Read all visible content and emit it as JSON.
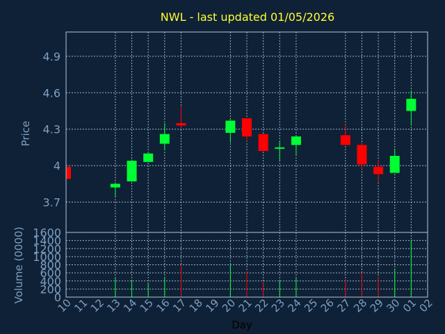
{
  "chart_data": {
    "type": "candlestick",
    "title": "NWL - last updated 01/05/2026",
    "price_axis": {
      "label": "Price",
      "ylim": [
        3.45,
        5.1
      ],
      "ticks": [
        3.7,
        4,
        4.3,
        4.6,
        4.9
      ],
      "tick_labels": [
        "3.7",
        "4",
        "4.3",
        "4.6",
        "4.9"
      ]
    },
    "volume_axis": {
      "label": "Volume (0000)",
      "ylim": [
        0,
        1600
      ],
      "ticks": [
        0,
        200,
        400,
        600,
        800,
        1000,
        1200,
        1400,
        1600
      ],
      "tick_labels": [
        "0",
        "200",
        "400",
        "600",
        "800",
        "1000",
        "1200",
        "1400",
        "1600"
      ]
    },
    "x_axis": {
      "label": "Day",
      "tick_labels": [
        "10",
        "11",
        "12",
        "13",
        "14",
        "15",
        "16",
        "17",
        "18",
        "19",
        "20",
        "21",
        "22",
        "23",
        "24",
        "25",
        "26",
        "27",
        "28",
        "29",
        "30",
        "01",
        "02"
      ],
      "grid_days": [
        "13",
        "14",
        "15",
        "16",
        "17",
        "20",
        "21",
        "22",
        "23",
        "24",
        "27",
        "28",
        "29",
        "30",
        "01"
      ]
    },
    "colors": {
      "up": "#00ff33",
      "down": "#ff0000"
    },
    "candles": [
      {
        "day": "10",
        "open": 3.99,
        "high": 3.99,
        "low": 3.89,
        "close": 3.89,
        "volume": 0
      },
      {
        "day": "13",
        "open": 3.82,
        "high": 3.86,
        "low": 3.74,
        "close": 3.85,
        "volume": 480
      },
      {
        "day": "14",
        "open": 3.87,
        "high": 4.05,
        "low": 3.87,
        "close": 4.04,
        "volume": 420
      },
      {
        "day": "15",
        "open": 4.03,
        "high": 4.1,
        "low": 4.03,
        "close": 4.1,
        "volume": 350
      },
      {
        "day": "16",
        "open": 4.18,
        "high": 4.35,
        "low": 4.13,
        "close": 4.26,
        "volume": 500
      },
      {
        "day": "17",
        "open": 4.35,
        "high": 4.49,
        "low": 4.31,
        "close": 4.33,
        "volume": 800
      },
      {
        "day": "20",
        "open": 4.27,
        "high": 4.39,
        "low": 4.19,
        "close": 4.37,
        "volume": 800
      },
      {
        "day": "21",
        "open": 4.39,
        "high": 4.39,
        "low": 4.2,
        "close": 4.24,
        "volume": 650
      },
      {
        "day": "22",
        "open": 4.26,
        "high": 4.26,
        "low": 4.12,
        "close": 4.12,
        "volume": 380
      },
      {
        "day": "23",
        "open": 4.14,
        "high": 4.2,
        "low": 4.04,
        "close": 4.15,
        "volume": 400
      },
      {
        "day": "24",
        "open": 4.17,
        "high": 4.24,
        "low": 4.09,
        "close": 4.24,
        "volume": 480
      },
      {
        "day": "27",
        "open": 4.25,
        "high": 4.34,
        "low": 4.17,
        "close": 4.17,
        "volume": 450
      },
      {
        "day": "28",
        "open": 4.17,
        "high": 4.19,
        "low": 3.97,
        "close": 4.01,
        "volume": 600
      },
      {
        "day": "29",
        "open": 3.99,
        "high": 4.05,
        "low": 3.86,
        "close": 3.93,
        "volume": 500
      },
      {
        "day": "30",
        "open": 3.94,
        "high": 4.14,
        "low": 3.94,
        "close": 4.08,
        "volume": 700
      },
      {
        "day": "01",
        "open": 4.45,
        "high": 4.62,
        "low": 4.33,
        "close": 4.55,
        "volume": 1400
      }
    ]
  }
}
